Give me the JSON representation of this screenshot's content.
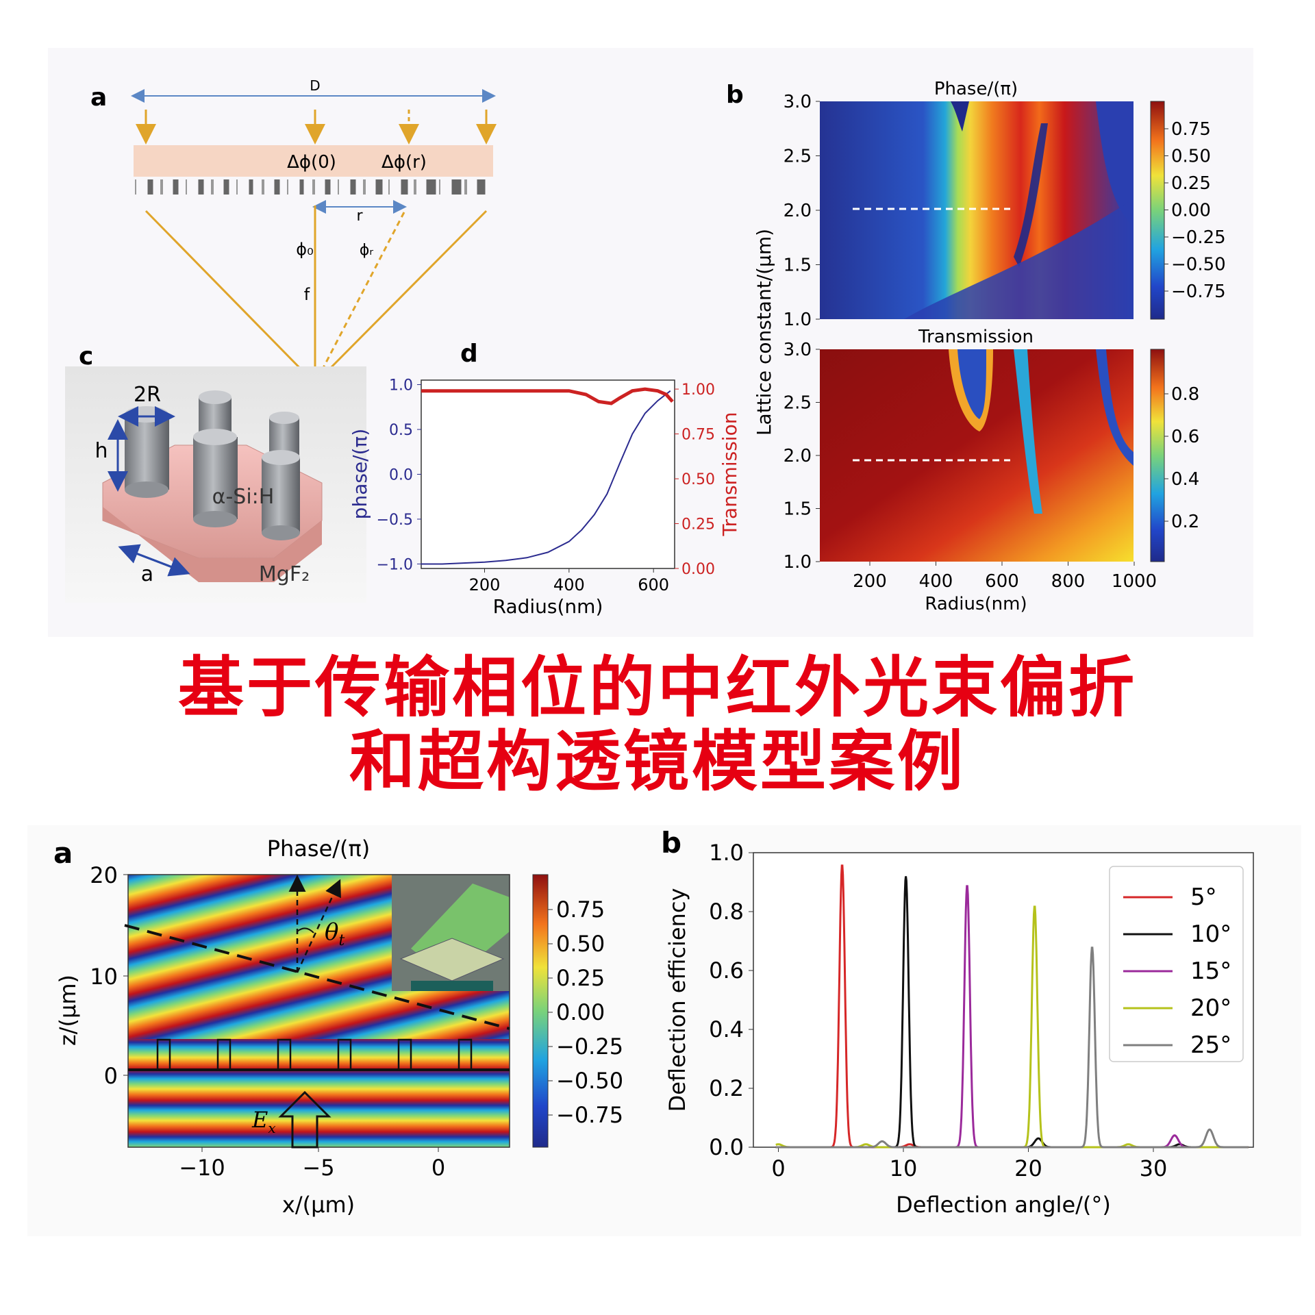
{
  "top_figure": {
    "panel_a": {
      "label": "a",
      "diameter_label": "D",
      "phase_center_label": "Δϕ(0)",
      "phase_r_label": "Δϕ(r)",
      "radius_label": "r",
      "phi0_label": "ϕ₀",
      "phir_label": "ϕᵣ",
      "focal_label": "f"
    },
    "panel_c": {
      "label": "c",
      "diameter_label": "2R",
      "height_label": "h",
      "pillar_material": "α-Si:H",
      "lattice_label": "a",
      "substrate_material": "MgF₂"
    },
    "panel_d": {
      "label": "d",
      "xlabel": "Radius(nm)",
      "ylabel_left": "phase/(π)",
      "ylabel_right": "Transmission",
      "xticks": [
        "200",
        "400",
        "600"
      ],
      "yticks_left": [
        "1.0",
        "0.5",
        "0.0",
        "−0.5",
        "−1.0"
      ],
      "yticks_right": [
        "1.00",
        "0.75",
        "0.50",
        "0.25",
        "0.00"
      ]
    },
    "panel_b": {
      "label": "b",
      "top_title": "Phase/(π)",
      "bottom_title": "Transmission",
      "ylabel": "Lattice constant/(μm)",
      "xlabel": "Radius(nm)",
      "yticks": [
        "3.0",
        "2.5",
        "2.0",
        "1.5",
        "1.0"
      ],
      "xticks": [
        "200",
        "400",
        "600",
        "800",
        "1000"
      ],
      "phase_colorbar_ticks": [
        "0.75",
        "0.50",
        "0.25",
        "0.00",
        "−0.25",
        "−0.50",
        "−0.75"
      ],
      "trans_colorbar_ticks": [
        "0.8",
        "0.6",
        "0.4",
        "0.2"
      ]
    }
  },
  "title": {
    "line1": "基于传输相位的中红外光束偏折",
    "line2": "和超构透镜模型案例"
  },
  "bottom_figure": {
    "panel_a": {
      "label": "a",
      "title": "Phase/(π)",
      "xlabel": "x/(μm)",
      "ylabel": "z/(μm)",
      "xticks": [
        "−10",
        "−5",
        "0"
      ],
      "yticks": [
        "20",
        "10",
        "0"
      ],
      "theta_label": "θ",
      "theta_sub": "t",
      "field_label": "E",
      "field_sub": "x",
      "colorbar_ticks": [
        "0.75",
        "0.50",
        "0.25",
        "0.00",
        "−0.25",
        "−0.50",
        "−0.75"
      ]
    },
    "panel_b": {
      "label": "b"
    }
  },
  "chart_data": [
    {
      "type": "line",
      "title": "",
      "xlabel": "Radius(nm)",
      "ylabel": "phase/(π)",
      "y2label": "Transmission",
      "xlim": [
        50,
        650
      ],
      "ylim": [
        -1.05,
        1.05
      ],
      "y2lim": [
        0,
        1.05
      ],
      "series": [
        {
          "name": "phase",
          "color": "#2b2b8f",
          "axis": "left",
          "x": [
            50,
            100,
            150,
            200,
            250,
            300,
            350,
            400,
            430,
            460,
            490,
            520,
            550,
            580,
            610,
            640
          ],
          "y": [
            -1.0,
            -1.0,
            -0.99,
            -0.98,
            -0.96,
            -0.93,
            -0.87,
            -0.75,
            -0.62,
            -0.45,
            -0.22,
            0.12,
            0.45,
            0.68,
            0.82,
            0.93
          ]
        },
        {
          "name": "transmission",
          "color": "#cc2222",
          "axis": "right",
          "x": [
            50,
            100,
            200,
            300,
            400,
            440,
            470,
            500,
            520,
            550,
            580,
            610,
            630,
            645
          ],
          "y": [
            0.99,
            0.99,
            0.99,
            0.99,
            0.99,
            0.97,
            0.93,
            0.92,
            0.95,
            0.99,
            1.0,
            0.99,
            0.97,
            0.93
          ]
        }
      ]
    },
    {
      "type": "line",
      "title": "",
      "xlabel": "Deflection angle/(°)",
      "ylabel": "Deflection efficiency",
      "xlim": [
        -2,
        38
      ],
      "ylim": [
        0,
        1.0
      ],
      "xticks": [
        0,
        10,
        20,
        30
      ],
      "yticks": [
        0.0,
        0.2,
        0.4,
        0.6,
        0.8,
        1.0
      ],
      "legend_position": "top-right",
      "series": [
        {
          "name": "5°",
          "color": "#d62728",
          "peak": 5.1,
          "value": 0.96,
          "side": [
            [
              10.5,
              0.01
            ]
          ]
        },
        {
          "name": "10°",
          "color": "#111111",
          "peak": 10.2,
          "value": 0.92,
          "side": [
            [
              20.8,
              0.03
            ],
            [
              32.1,
              0.01
            ]
          ]
        },
        {
          "name": "15°",
          "color": "#9b2a9b",
          "peak": 15.1,
          "value": 0.89,
          "side": [
            [
              31.7,
              0.04
            ]
          ]
        },
        {
          "name": "20°",
          "color": "#b5c21b",
          "peak": 20.5,
          "value": 0.82,
          "side": [
            [
              0.0,
              0.01
            ],
            [
              7.0,
              0.01
            ],
            [
              28.0,
              0.01
            ]
          ]
        },
        {
          "name": "25°",
          "color": "#7f7f7f",
          "peak": 25.1,
          "value": 0.68,
          "side": [
            [
              8.3,
              0.02
            ],
            [
              34.5,
              0.06
            ]
          ]
        }
      ]
    }
  ]
}
